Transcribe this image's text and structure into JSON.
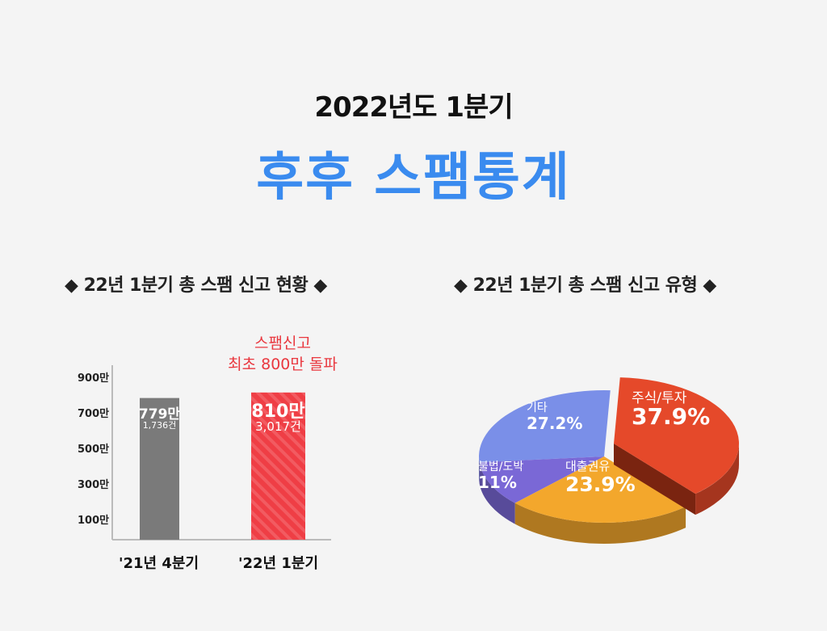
{
  "header": {
    "subtitle": "2022년도 1분기",
    "title": "후후 스팸통계"
  },
  "sections": {
    "left": "◆ 22년 1분기 총 스팸 신고 현황 ◆",
    "right": "◆ 22년 1분기 총 스팸 신고 유형 ◆"
  },
  "chart_data": [
    {
      "type": "bar",
      "categories": [
        "'21년 4분기",
        "'22년 1분기"
      ],
      "values": [
        779,
        810
      ],
      "value_labels": [
        "779만",
        "810만"
      ],
      "count_labels": [
        "1,736건",
        "3,017건"
      ],
      "y_ticks": [
        "100만",
        "300만",
        "500만",
        "700만",
        "900만"
      ],
      "y_tick_values": [
        100,
        300,
        500,
        700,
        900
      ],
      "ylim": [
        0,
        900
      ],
      "colors": [
        "#7a7a7a",
        "#ef3e45"
      ],
      "annotation": [
        "스팸신고",
        "최초 800만 돌파"
      ]
    },
    {
      "type": "pie",
      "slices": [
        {
          "label": "주식/투자",
          "value": 37.9,
          "text": "37.9%",
          "color": "#e5492a"
        },
        {
          "label": "대출권유",
          "value": 23.9,
          "text": "23.9%",
          "color": "#f3a72c"
        },
        {
          "label": "불법/도박",
          "value": 11,
          "text": "11%",
          "color": "#7a68d6"
        },
        {
          "label": "기타",
          "value": 27.2,
          "text": "27.2%",
          "color": "#7a8fe8"
        }
      ],
      "style": "3d-exploded"
    }
  ]
}
